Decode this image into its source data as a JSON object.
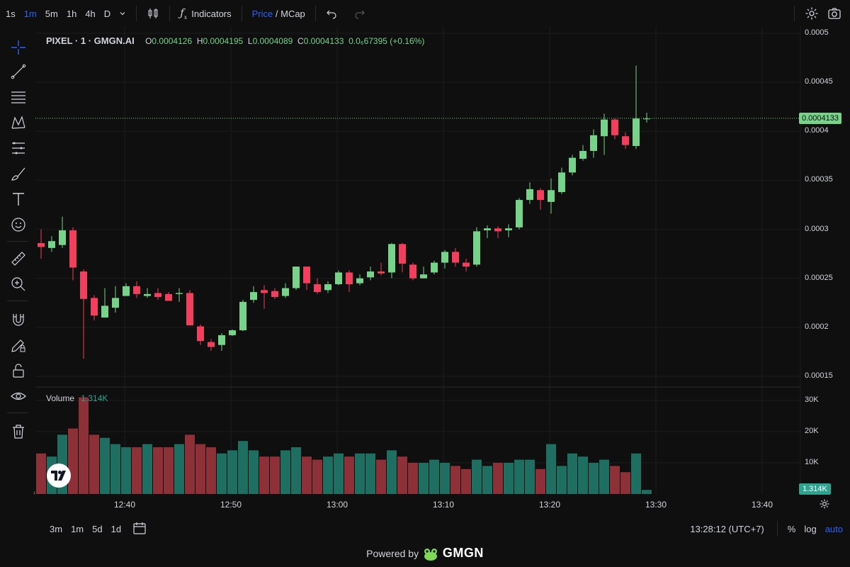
{
  "toolbar": {
    "timeframes": [
      "1s",
      "1m",
      "5m",
      "1h",
      "4h",
      "D"
    ],
    "active_timeframe": "1m",
    "indicators_label": "Indicators",
    "price_label": "Price",
    "slash": " / ",
    "mcap_label": "MCap"
  },
  "legend": {
    "symbol": "PIXEL · 1 · GMGN.AI",
    "o_label": "O",
    "o_value": "0.0004126",
    "h_label": "H",
    "h_value": "0.0004195",
    "l_label": "L",
    "l_value": "0.0004089",
    "c_label": "C",
    "c_value": "0.0004133",
    "change": "0.0₆67395 (+0.16%)"
  },
  "volume": {
    "label": "Volume",
    "value": "1.314K",
    "tag": "1.314K"
  },
  "price_axis": [
    "0.0005",
    "0.00045",
    "0.0004",
    "0.00035",
    "0.0003",
    "0.00025",
    "0.0002",
    "0.00015"
  ],
  "price_axis_values": [
    0.0005,
    0.00045,
    0.0004,
    0.00035,
    0.0003,
    0.00025,
    0.0002,
    0.00015
  ],
  "current_price": "0.0004133",
  "current_price_value": 0.0004133,
  "volume_axis": [
    "30K",
    "20K",
    "10K"
  ],
  "volume_axis_values": [
    30000,
    20000,
    10000
  ],
  "time_axis": [
    "12:40",
    "12:50",
    "13:00",
    "13:10",
    "13:20",
    "13:30",
    "13:40"
  ],
  "bottom": {
    "ranges": [
      "3m",
      "1m",
      "5d",
      "1d"
    ],
    "clock": "13:28:12 (UTC+7)",
    "percent": "%",
    "log": "log",
    "auto": "auto"
  },
  "powered": {
    "text": "Powered by",
    "brand": "GMGN"
  },
  "colors": {
    "up": "#77d38a",
    "down": "#f23f5d",
    "vol_up": "#1f6e62",
    "vol_down": "#8e3038",
    "accent": "#2962ff"
  },
  "chart_data": {
    "type": "candlestick",
    "price_range": [
      0.00015,
      0.0005
    ],
    "volume_range": [
      0,
      30000
    ],
    "candles": [
      [
        0.000286,
        0.000282,
        0.0003,
        0.00027,
        13000,
        0
      ],
      [
        0.000281,
        0.000288,
        0.000293,
        0.000277,
        12000,
        1
      ],
      [
        0.000284,
        0.000299,
        0.000313,
        0.000281,
        19000,
        1
      ],
      [
        0.000299,
        0.000261,
        0.000302,
        0.000248,
        21000,
        0
      ],
      [
        0.000257,
        0.000229,
        0.000259,
        0.000168,
        31000,
        0
      ],
      [
        0.00023,
        0.000212,
        0.000233,
        0.000207,
        19000,
        0
      ],
      [
        0.00021,
        0.000222,
        0.00024,
        0.00021,
        18000,
        1
      ],
      [
        0.00022,
        0.00023,
        0.000242,
        0.000215,
        16000,
        1
      ],
      [
        0.000232,
        0.000242,
        0.000245,
        0.000232,
        15000,
        1
      ],
      [
        0.000242,
        0.000234,
        0.000247,
        0.00023,
        15000,
        0
      ],
      [
        0.000232,
        0.000234,
        0.00024,
        0.00023,
        16000,
        1
      ],
      [
        0.000235,
        0.000231,
        0.00024,
        0.000228,
        15000,
        0
      ],
      [
        0.000234,
        0.000227,
        0.000236,
        0.000227,
        15000,
        0
      ],
      [
        0.000234,
        0.000235,
        0.00024,
        0.000226,
        16000,
        1
      ],
      [
        0.000235,
        0.000202,
        0.000238,
        0.000202,
        19000,
        0
      ],
      [
        0.000201,
        0.000186,
        0.000203,
        0.000182,
        16000,
        0
      ],
      [
        0.000185,
        0.00018,
        0.000188,
        0.000176,
        15000,
        0
      ],
      [
        0.000182,
        0.000192,
        0.000194,
        0.000176,
        13000,
        1
      ],
      [
        0.000192,
        0.000197,
        0.000198,
        0.000191,
        14000,
        1
      ],
      [
        0.000197,
        0.000226,
        0.000228,
        0.000196,
        17000,
        1
      ],
      [
        0.000228,
        0.000236,
        0.000242,
        0.000225,
        14000,
        1
      ],
      [
        0.000238,
        0.000235,
        0.000243,
        0.000219,
        12000,
        0
      ],
      [
        0.000237,
        0.000231,
        0.00024,
        0.000229,
        12000,
        0
      ],
      [
        0.000232,
        0.00024,
        0.000245,
        0.00023,
        14000,
        1
      ],
      [
        0.00024,
        0.000262,
        0.000262,
        0.000238,
        15000,
        1
      ],
      [
        0.000262,
        0.000245,
        0.000262,
        0.000238,
        12000,
        0
      ],
      [
        0.000244,
        0.000236,
        0.00025,
        0.000234,
        11000,
        0
      ],
      [
        0.000238,
        0.000244,
        0.000247,
        0.000235,
        12000,
        1
      ],
      [
        0.000244,
        0.000256,
        0.000258,
        0.000243,
        13000,
        1
      ],
      [
        0.000256,
        0.000244,
        0.000258,
        0.000236,
        12000,
        0
      ],
      [
        0.000245,
        0.00025,
        0.000254,
        0.000243,
        13000,
        1
      ],
      [
        0.000251,
        0.000257,
        0.000262,
        0.000248,
        13000,
        1
      ],
      [
        0.000257,
        0.000255,
        0.000266,
        0.000253,
        11000,
        0
      ],
      [
        0.000256,
        0.000285,
        0.000286,
        0.00025,
        14000,
        1
      ],
      [
        0.000285,
        0.000265,
        0.000286,
        0.000256,
        12000,
        0
      ],
      [
        0.000264,
        0.00025,
        0.000266,
        0.000248,
        10000,
        0
      ],
      [
        0.00025,
        0.000254,
        0.000262,
        0.00025,
        10000,
        1
      ],
      [
        0.000256,
        0.000266,
        0.000268,
        0.000254,
        11000,
        1
      ],
      [
        0.000266,
        0.000277,
        0.000279,
        0.00026,
        10000,
        1
      ],
      [
        0.000277,
        0.000266,
        0.000281,
        0.000262,
        9000,
        0
      ],
      [
        0.000266,
        0.000262,
        0.00027,
        0.000257,
        8000,
        0
      ],
      [
        0.000264,
        0.000298,
        0.000302,
        0.000262,
        11000,
        1
      ],
      [
        0.000299,
        0.000301,
        0.000304,
        0.000291,
        9000,
        1
      ],
      [
        0.000301,
        0.000298,
        0.000303,
        0.000291,
        10000,
        0
      ],
      [
        0.000299,
        0.000301,
        0.000305,
        0.000292,
        10000,
        1
      ],
      [
        0.000302,
        0.00033,
        0.000332,
        0.0003,
        11000,
        1
      ],
      [
        0.00033,
        0.000341,
        0.000348,
        0.000326,
        11000,
        1
      ],
      [
        0.00034,
        0.00033,
        0.000342,
        0.00032,
        8000,
        0
      ],
      [
        0.000328,
        0.00034,
        0.000352,
        0.000316,
        16000,
        1
      ],
      [
        0.000338,
        0.000358,
        0.000363,
        0.000336,
        9000,
        1
      ],
      [
        0.000358,
        0.000373,
        0.000376,
        0.000355,
        13000,
        1
      ],
      [
        0.000372,
        0.00038,
        0.000386,
        0.00037,
        12000,
        1
      ],
      [
        0.00038,
        0.000396,
        0.000402,
        0.000373,
        10000,
        1
      ],
      [
        0.000395,
        0.000412,
        0.000418,
        0.000376,
        11000,
        1
      ],
      [
        0.000412,
        0.000396,
        0.000413,
        0.000392,
        9000,
        0
      ],
      [
        0.000395,
        0.000386,
        0.000399,
        0.000382,
        7000,
        0
      ],
      [
        0.000385,
        0.000413,
        0.000467,
        0.000382,
        13000,
        1
      ],
      [
        0.000413,
        0.000413,
        0.000419,
        0.000409,
        1314,
        1
      ]
    ]
  }
}
